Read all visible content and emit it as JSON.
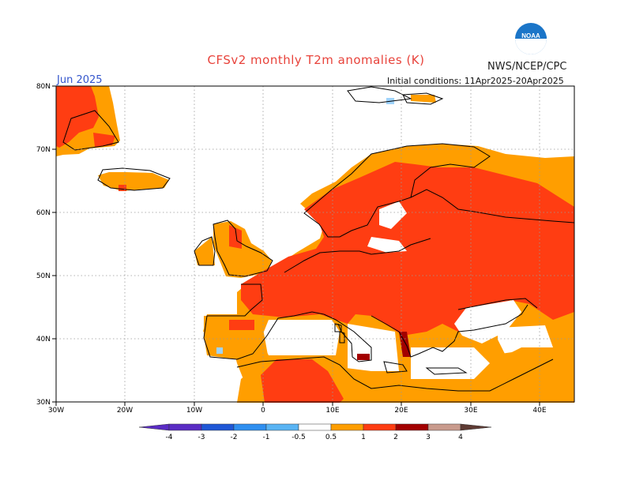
{
  "header": {
    "title": "CFSv2 monthly T2m anomalies (K)",
    "org": "NWS/NCEP/CPC",
    "month": "Jun 2025",
    "init": "Initial conditions: 11Apr2025-20Apr2025",
    "logo_text": "NOAA"
  },
  "axes": {
    "lat_labels": [
      "80N",
      "70N",
      "60N",
      "50N",
      "40N",
      "30N"
    ],
    "lon_labels": [
      "30W",
      "20W",
      "10W",
      "0",
      "10E",
      "20E",
      "30E",
      "40E"
    ]
  },
  "legend": {
    "ticks": [
      "-4",
      "-3",
      "-2",
      "-1",
      "-0.5",
      "0.5",
      "1",
      "2",
      "3",
      "4"
    ],
    "colors": [
      "#5a2cc4",
      "#1f57d6",
      "#2f8ff0",
      "#59b4f4",
      "#9fd3fb",
      "#ffffff",
      "#ff9e00",
      "#ff3d12",
      "#a30000",
      "#c99b8d",
      "#5e3b34"
    ]
  },
  "colors": {
    "anom_05_1": "#ff9e00",
    "anom_1_2": "#ff3d12",
    "anom_2_3": "#a30000",
    "anom_neg_05_1": "#9fd3fb",
    "title_red": "#e8433b",
    "month_blue": "#3355cc"
  }
}
